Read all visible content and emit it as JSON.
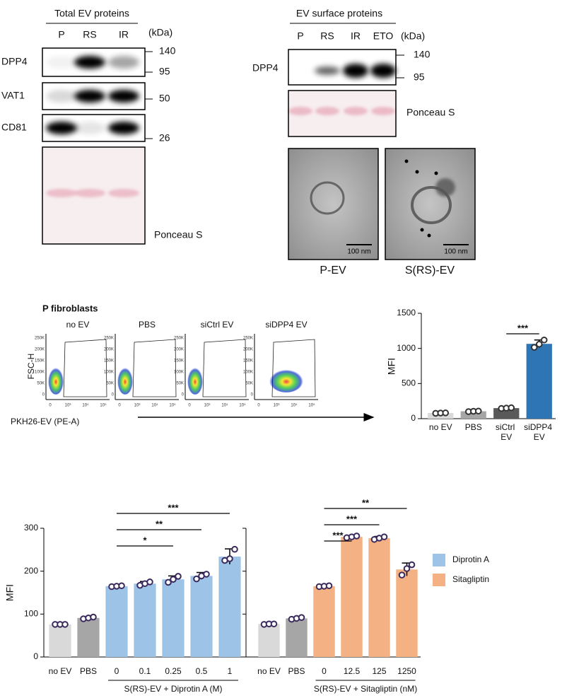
{
  "panel_a": {
    "title": "Total EV proteins",
    "lanes": [
      "P",
      "RS",
      "IR"
    ],
    "unit": "(kDa)",
    "rows": [
      "DPP4",
      "VAT1",
      "CD81"
    ],
    "markers": [
      "140",
      "95",
      "50",
      "26"
    ],
    "stain": "Ponceau S"
  },
  "panel_b": {
    "title": "EV surface proteins",
    "lanes": [
      "P",
      "RS",
      "IR",
      "ETO"
    ],
    "unit": "(kDa)",
    "row": "DPP4",
    "markers": [
      "140",
      "95"
    ],
    "stain": "Ponceau S",
    "em": [
      {
        "label": "P-EV",
        "scale": "100 nm"
      },
      {
        "label": "S(RS)-EV",
        "scale": "100 nm"
      }
    ]
  },
  "panel_c": {
    "title": "P fibroblasts",
    "plots": [
      "no EV",
      "PBS",
      "siCtrl EV",
      "siDPP4 EV"
    ],
    "ylabel": "FSC-H",
    "xlabel": "PKH26-EV (PE-A)",
    "yticks": [
      "250K",
      "200K",
      "150K",
      "100K",
      "50K",
      "0"
    ],
    "xticks": [
      "0",
      "10³",
      "10⁴",
      "10⁵"
    ]
  },
  "chart_data": [
    {
      "type": "bar",
      "ylabel": "MFI",
      "categories": [
        "no EV",
        "PBS",
        "siCtrl EV",
        "siDPP4 EV"
      ],
      "values": [
        80,
        105,
        150,
        1065
      ],
      "errors": [
        5,
        6,
        8,
        55
      ],
      "points": [
        [
          76,
          80,
          82
        ],
        [
          100,
          105,
          108
        ],
        [
          145,
          150,
          155
        ],
        [
          1015,
          1060,
          1120
        ]
      ],
      "colors": [
        "#d9d9d9",
        "#a6a6a6",
        "#595959",
        "#2e75b6"
      ],
      "point_color": "#333333",
      "ylim": [
        0,
        1500
      ],
      "yticks": [
        0,
        500,
        1000,
        1500
      ],
      "significance": [
        {
          "from": 2,
          "to": 3,
          "label": "***"
        }
      ]
    },
    {
      "type": "bar",
      "ylabel": "MFI",
      "xlabel": "S(RS)-EV + Diprotin A (M)",
      "categories": [
        "no EV",
        "PBS",
        "0",
        "0.1",
        "0.25",
        "0.5",
        "1"
      ],
      "values": [
        76,
        91,
        165,
        171,
        181,
        189,
        234
      ],
      "errors": [
        2,
        3,
        2,
        5,
        8,
        8,
        18
      ],
      "points": [
        [
          76,
          76,
          76
        ],
        [
          89,
          91,
          93
        ],
        [
          164,
          165,
          166
        ],
        [
          167,
          171,
          175
        ],
        [
          174,
          181,
          188
        ],
        [
          182,
          189,
          193
        ],
        [
          225,
          229,
          251
        ]
      ],
      "colors": [
        "#d9d9d9",
        "#a6a6a6",
        "#9dc3e6",
        "#9dc3e6",
        "#9dc3e6",
        "#9dc3e6",
        "#9dc3e6"
      ],
      "point_color": "#3b2a5e",
      "ylim": [
        0,
        300
      ],
      "yticks": [
        0,
        100,
        200,
        300
      ],
      "significance": [
        {
          "from": 2,
          "to": 4,
          "label": "*"
        },
        {
          "from": 2,
          "to": 5,
          "label": "**"
        },
        {
          "from": 2,
          "to": 6,
          "label": "***"
        }
      ]
    },
    {
      "type": "bar",
      "xlabel": "S(RS)-EV + Sitagliptin (nM)",
      "categories": [
        "no EV",
        "PBS",
        "0",
        "12.5",
        "125",
        "1250"
      ],
      "values": [
        77,
        90,
        165,
        280,
        277,
        204
      ],
      "errors": [
        2,
        3,
        2,
        3,
        4,
        15
      ],
      "points": [
        [
          76,
          77,
          77
        ],
        [
          88,
          90,
          92
        ],
        [
          164,
          165,
          166
        ],
        [
          278,
          280,
          282
        ],
        [
          274,
          277,
          280
        ],
        [
          191,
          206,
          215
        ]
      ],
      "colors": [
        "#d9d9d9",
        "#a6a6a6",
        "#f4b183",
        "#f4b183",
        "#f4b183",
        "#f4b183"
      ],
      "point_color": "#3b2a5e",
      "ylim": [
        0,
        300
      ],
      "yticks": [
        0,
        100,
        200,
        300
      ],
      "significance": [
        {
          "from": 2,
          "to": 3,
          "label": "***"
        },
        {
          "from": 2,
          "to": 4,
          "label": "***"
        },
        {
          "from": 2,
          "to": 5,
          "label": "**"
        }
      ]
    }
  ],
  "legend": [
    {
      "name": "Diprotin A",
      "color": "#9dc3e6"
    },
    {
      "name": "Sitagliptin",
      "color": "#f4b183"
    }
  ]
}
